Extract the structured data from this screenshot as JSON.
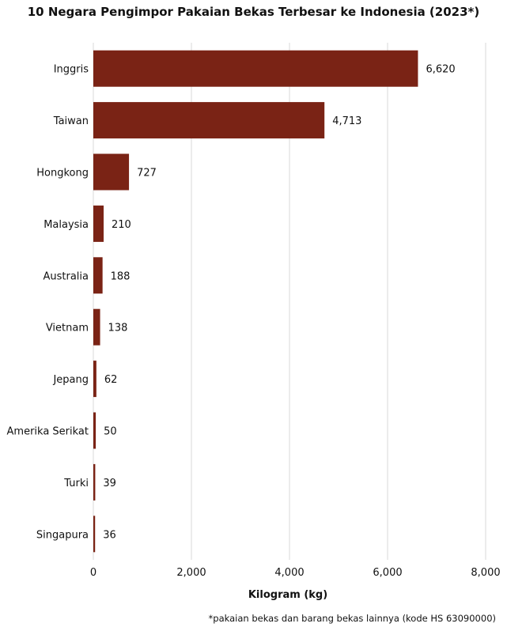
{
  "chart_data": {
    "type": "bar",
    "orientation": "horizontal",
    "title": "10 Negara Pengimpor Pakaian Bekas Terbesar ke Indonesia (2023*)",
    "xlabel": "Kilogram (kg)",
    "ylabel": "",
    "categories": [
      "Inggris",
      "Taiwan",
      "Hongkong",
      "Malaysia",
      "Australia",
      "Vietnam",
      "Jepang",
      "Amerika Serikat",
      "Turki",
      "Singapura"
    ],
    "values": [
      6620,
      4713,
      727,
      210,
      188,
      138,
      62,
      50,
      39,
      36
    ],
    "value_labels": [
      "6,620",
      "4,713",
      "727",
      "210",
      "188",
      "138",
      "62",
      "50",
      "39",
      "36"
    ],
    "xlim": [
      0,
      8000
    ],
    "ticks": [
      0,
      2000,
      4000,
      6000,
      8000
    ],
    "tick_labels": [
      "0",
      "2,000",
      "4,000",
      "6,000",
      "8,000"
    ],
    "grid": true,
    "legend": "none",
    "bar_color": "#7a2315",
    "grid_color": "#d9d9d9",
    "footnote": "*pakaian bekas dan barang bekas lainnya (kode HS 63090000)"
  }
}
